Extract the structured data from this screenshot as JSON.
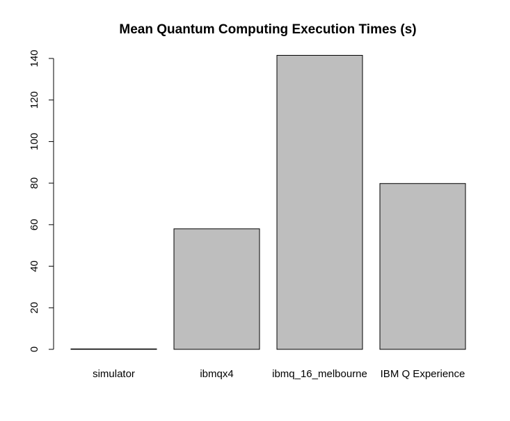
{
  "chart_data": {
    "type": "bar",
    "title": "Mean Quantum Computing Execution Times (s)",
    "xlabel": "",
    "ylabel": "",
    "categories": [
      "simulator",
      "ibmqx4",
      "ibmq_16_melbourne",
      "IBM Q Experience"
    ],
    "values": [
      0.2,
      58,
      141.5,
      79.8
    ],
    "ylim": [
      0,
      140
    ],
    "yticks": [
      0,
      20,
      40,
      60,
      80,
      100,
      120,
      140
    ],
    "grid": false,
    "legend": "none",
    "bar_color": "#bebebe"
  }
}
